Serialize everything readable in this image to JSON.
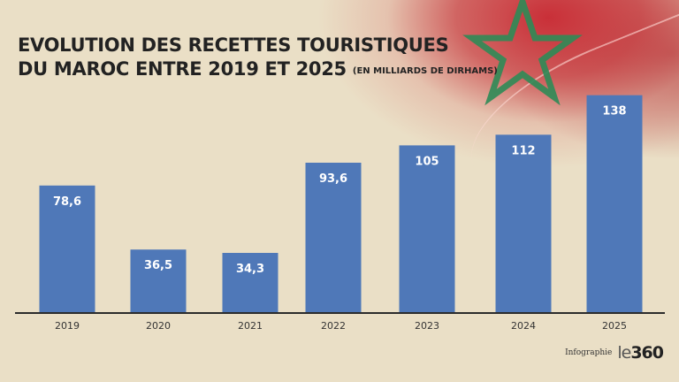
{
  "title": {
    "line1": "EVOLUTION DES RECETTES TOURISTIQUES",
    "line2": "DU MAROC ENTRE 2019 ET 2025",
    "unit": "(EN  MILLIARDS DE DIRHAMS)"
  },
  "credit": {
    "label": "Infographie",
    "logo_prefix": "le",
    "logo_number": "360"
  },
  "colors": {
    "bar": "#4f78b8",
    "axis": "#2b2b2b",
    "flag_red": "#c1272d",
    "flag_green": "#2e8b57"
  },
  "chart_data": {
    "type": "bar",
    "title": "EVOLUTION DES RECETTES TOURISTIQUES DU MAROC ENTRE 2019 ET 2025 (EN  MILLIARDS DE DIRHAMS)",
    "xlabel": "",
    "ylabel": "",
    "categories": [
      "2019",
      "2020",
      "2021",
      "2022",
      "2023",
      "2024",
      "2025"
    ],
    "values": [
      78.6,
      36.5,
      34.3,
      93.6,
      105,
      112,
      138
    ],
    "labels": [
      "78,6",
      "36,5",
      "34,3",
      "93,6",
      "105",
      "112",
      "138"
    ],
    "ylim": [
      0,
      140
    ],
    "grid": false,
    "legend": "none"
  }
}
